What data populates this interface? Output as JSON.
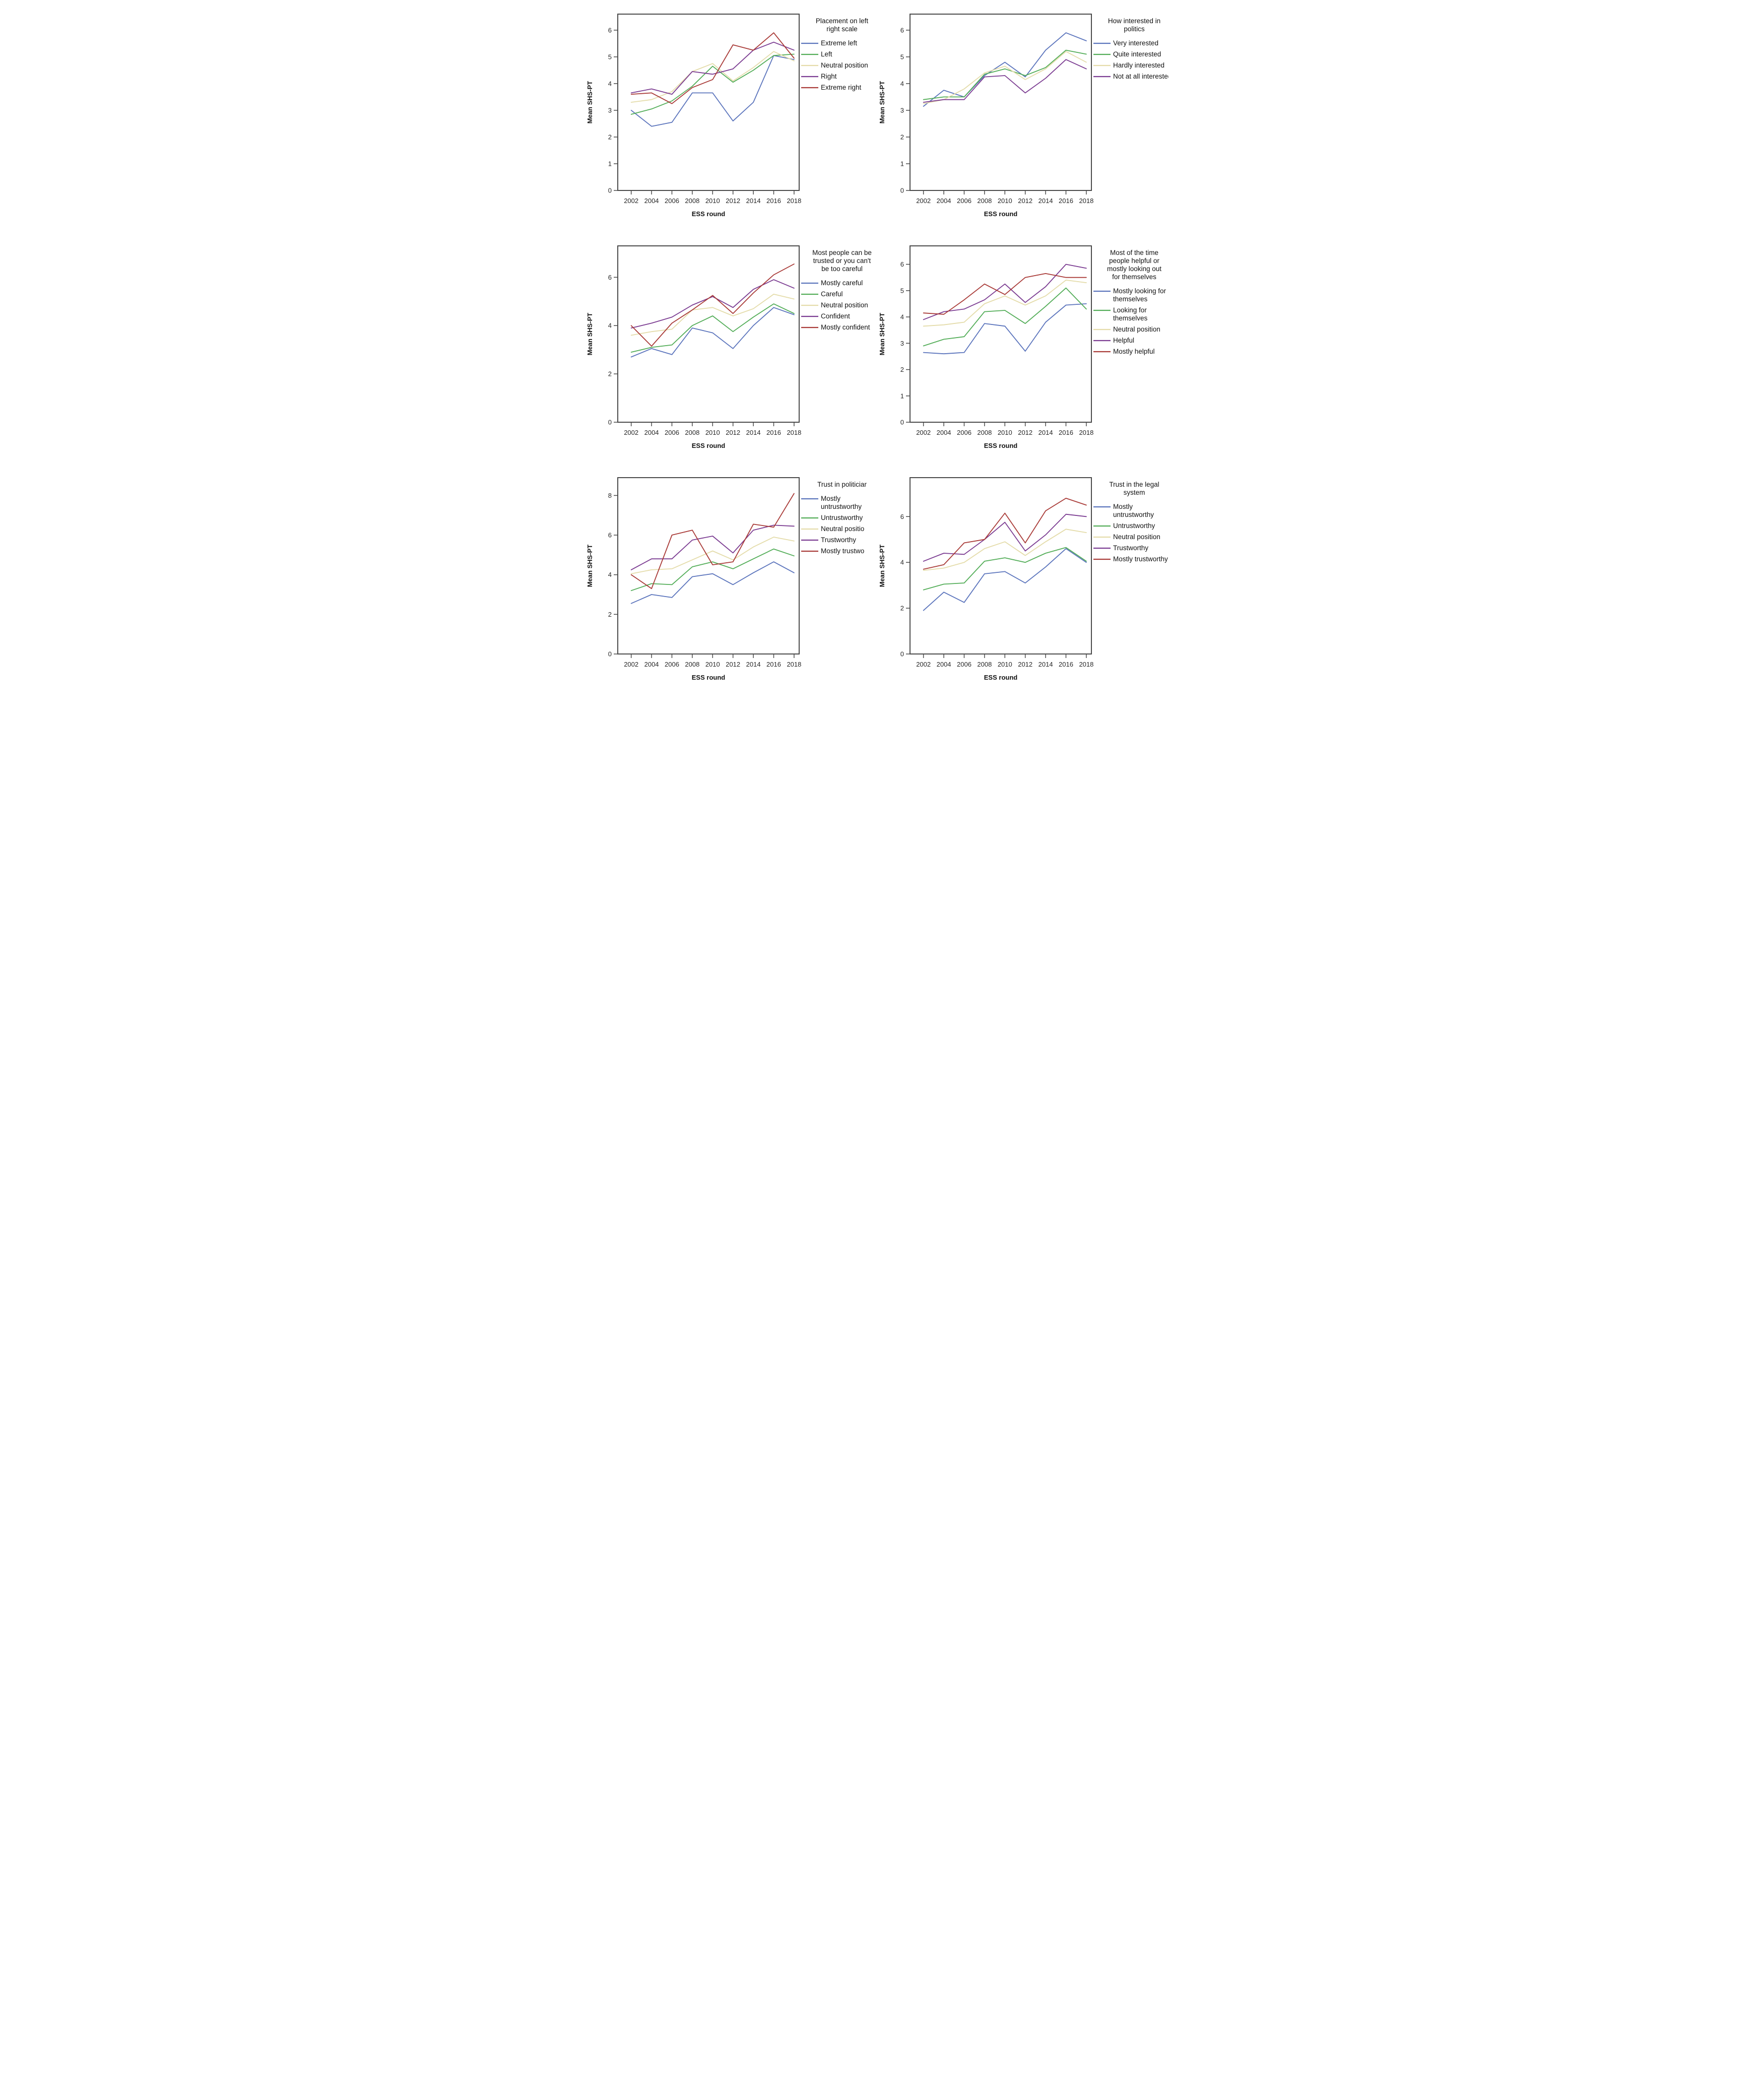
{
  "page": {
    "background": "#ffffff",
    "grid_layout": "2x3"
  },
  "palette": {
    "blue": "#5b74bc",
    "green": "#53ad58",
    "tan": "#e4dcaa",
    "purple": "#7c3d92",
    "red": "#a93b38",
    "axis": "#4a4a4a",
    "text": "#262626"
  },
  "chart_data": [
    {
      "type": "line",
      "title": "Placement on left right scale",
      "title_lines": [
        "Placement on left",
        "right scale"
      ],
      "xlabel": "ESS round",
      "ylabel": "Mean SHS-PT",
      "x": [
        2002,
        2004,
        2006,
        2008,
        2010,
        2012,
        2014,
        2016,
        2018
      ],
      "ylim": [
        0,
        6.6
      ],
      "yticks": [
        0,
        1,
        2,
        3,
        4,
        5,
        6
      ],
      "grid": false,
      "legend_position": "right",
      "series": [
        {
          "name": "Extreme left",
          "name_lines": [
            "Extreme left"
          ],
          "color": "#5b74bc",
          "values": [
            3.0,
            2.4,
            2.55,
            3.65,
            3.65,
            2.6,
            3.3,
            5.05,
            4.9
          ]
        },
        {
          "name": "Left",
          "name_lines": [
            "Left"
          ],
          "color": "#53ad58",
          "values": [
            2.85,
            3.05,
            3.35,
            3.9,
            4.65,
            4.05,
            4.5,
            5.05,
            5.1
          ]
        },
        {
          "name": "Neutral position",
          "name_lines": [
            "Neutral position"
          ],
          "color": "#e4dcaa",
          "values": [
            3.3,
            3.4,
            3.7,
            4.45,
            4.75,
            4.1,
            4.6,
            5.2,
            4.85
          ]
        },
        {
          "name": "Right",
          "name_lines": [
            "Right"
          ],
          "color": "#7c3d92",
          "values": [
            3.65,
            3.8,
            3.6,
            4.45,
            4.35,
            4.55,
            5.25,
            5.55,
            5.25
          ]
        },
        {
          "name": "Extreme right",
          "name_lines": [
            "Extreme right"
          ],
          "color": "#a93b38",
          "values": [
            3.6,
            3.65,
            3.25,
            3.85,
            4.15,
            5.45,
            5.25,
            5.9,
            4.95
          ]
        }
      ]
    },
    {
      "type": "line",
      "title": "How interested in politics",
      "title_lines": [
        "How interested in",
        "politics"
      ],
      "xlabel": "ESS round",
      "ylabel": "Mean SHS-PT",
      "x": [
        2002,
        2004,
        2006,
        2008,
        2010,
        2012,
        2014,
        2016,
        2018
      ],
      "ylim": [
        0,
        6.6
      ],
      "yticks": [
        0,
        1,
        2,
        3,
        4,
        5,
        6
      ],
      "grid": false,
      "legend_position": "right",
      "series": [
        {
          "name": "Very interested",
          "name_lines": [
            "Very interested"
          ],
          "color": "#5b74bc",
          "values": [
            3.15,
            3.75,
            3.5,
            4.3,
            4.8,
            4.25,
            5.25,
            5.9,
            5.6
          ]
        },
        {
          "name": "Quite interested",
          "name_lines": [
            "Quite interested"
          ],
          "color": "#53ad58",
          "values": [
            3.4,
            3.5,
            3.5,
            4.35,
            4.55,
            4.3,
            4.6,
            5.25,
            5.1
          ]
        },
        {
          "name": "Hardly interested",
          "name_lines": [
            "Hardly interested"
          ],
          "color": "#e4dcaa",
          "values": [
            3.25,
            3.4,
            3.8,
            4.4,
            4.65,
            4.15,
            4.55,
            5.2,
            4.8
          ]
        },
        {
          "name": "Not at all interested",
          "name_lines": [
            "Not at all interested"
          ],
          "color": "#7c3d92",
          "values": [
            3.3,
            3.4,
            3.4,
            4.25,
            4.3,
            3.65,
            4.2,
            4.9,
            4.55
          ]
        }
      ]
    },
    {
      "type": "line",
      "title": "Most people can be trusted or you can't be too careful",
      "title_lines": [
        "Most people can be",
        "trusted or you can't",
        "be too careful"
      ],
      "xlabel": "ESS round",
      "ylabel": "Mean SHS-PT",
      "x": [
        2002,
        2004,
        2006,
        2008,
        2010,
        2012,
        2014,
        2016,
        2018
      ],
      "ylim": [
        0,
        7.3
      ],
      "yticks": [
        0,
        2,
        4,
        6
      ],
      "grid": false,
      "legend_position": "right",
      "series": [
        {
          "name": "Mostly careful",
          "name_lines": [
            "Mostly careful"
          ],
          "color": "#5b74bc",
          "values": [
            2.7,
            3.05,
            2.8,
            3.9,
            3.7,
            3.05,
            4.0,
            4.75,
            4.45
          ]
        },
        {
          "name": "Careful",
          "name_lines": [
            "Careful"
          ],
          "color": "#53ad58",
          "values": [
            2.9,
            3.1,
            3.2,
            4.0,
            4.4,
            3.75,
            4.35,
            4.9,
            4.5
          ]
        },
        {
          "name": "Neutral position",
          "name_lines": [
            "Neutral position"
          ],
          "color": "#e4dcaa",
          "values": [
            3.6,
            3.75,
            3.85,
            4.65,
            4.75,
            4.4,
            4.7,
            5.3,
            5.1
          ]
        },
        {
          "name": "Confident",
          "name_lines": [
            "Confident"
          ],
          "color": "#7c3d92",
          "values": [
            3.9,
            4.1,
            4.35,
            4.85,
            5.2,
            4.75,
            5.5,
            5.9,
            5.55
          ]
        },
        {
          "name": "Mostly confident",
          "name_lines": [
            "Mostly confident"
          ],
          "color": "#a93b38",
          "values": [
            4.0,
            3.15,
            4.1,
            4.65,
            5.25,
            4.5,
            5.35,
            6.1,
            6.55
          ]
        }
      ]
    },
    {
      "type": "line",
      "title": "Most of the time people helpful or mostly looking out for themselves",
      "title_lines": [
        "Most of the time",
        "people helpful or",
        "mostly looking out",
        "for themselves"
      ],
      "xlabel": "ESS round",
      "ylabel": "Mean SHS-PT",
      "x": [
        2002,
        2004,
        2006,
        2008,
        2010,
        2012,
        2014,
        2016,
        2018
      ],
      "ylim": [
        0,
        6.7
      ],
      "yticks": [
        0,
        1,
        2,
        3,
        4,
        5,
        6
      ],
      "grid": false,
      "legend_position": "right",
      "series": [
        {
          "name": "Mostly looking for themselves",
          "name_lines": [
            "Mostly looking for",
            "themselves"
          ],
          "color": "#5b74bc",
          "values": [
            2.65,
            2.6,
            2.65,
            3.75,
            3.65,
            2.7,
            3.8,
            4.45,
            4.5
          ]
        },
        {
          "name": "Looking for themselves",
          "name_lines": [
            "Looking for",
            "themselves"
          ],
          "color": "#53ad58",
          "values": [
            2.9,
            3.15,
            3.25,
            4.2,
            4.25,
            3.75,
            4.4,
            5.1,
            4.3
          ]
        },
        {
          "name": "Neutral position",
          "name_lines": [
            "Neutral position"
          ],
          "color": "#e4dcaa",
          "values": [
            3.65,
            3.7,
            3.8,
            4.5,
            4.8,
            4.45,
            4.8,
            5.4,
            5.3
          ]
        },
        {
          "name": "Helpful",
          "name_lines": [
            "Helpful"
          ],
          "color": "#7c3d92",
          "values": [
            3.9,
            4.2,
            4.3,
            4.65,
            5.25,
            4.55,
            5.15,
            6.0,
            5.85
          ]
        },
        {
          "name": "Mostly helpful",
          "name_lines": [
            "Mostly helpful"
          ],
          "color": "#a93b38",
          "values": [
            4.15,
            4.1,
            4.65,
            5.25,
            4.85,
            5.5,
            5.65,
            5.5,
            5.5
          ]
        }
      ]
    },
    {
      "type": "line",
      "title": "Trust in politiciar",
      "title_lines": [
        "Trust in politiciar"
      ],
      "xlabel": "ESS round",
      "ylabel": "Mean SHS-PT",
      "x": [
        2002,
        2004,
        2006,
        2008,
        2010,
        2012,
        2014,
        2016,
        2018
      ],
      "ylim": [
        0,
        8.9
      ],
      "yticks": [
        0,
        2,
        4,
        6,
        8
      ],
      "grid": false,
      "legend_position": "right",
      "series": [
        {
          "name": "Mostly untrustworthy",
          "name_lines": [
            "Mostly",
            "untrustworthy"
          ],
          "color": "#5b74bc",
          "values": [
            2.55,
            3.0,
            2.85,
            3.9,
            4.05,
            3.5,
            4.1,
            4.65,
            4.1
          ]
        },
        {
          "name": "Untrustworthy",
          "name_lines": [
            "Untrustworthy"
          ],
          "color": "#53ad58",
          "values": [
            3.2,
            3.55,
            3.5,
            4.4,
            4.65,
            4.3,
            4.8,
            5.3,
            4.95
          ]
        },
        {
          "name": "Neutral positio",
          "name_lines": [
            "Neutral positio"
          ],
          "color": "#e4dcaa",
          "values": [
            4.05,
            4.25,
            4.3,
            4.75,
            5.2,
            4.75,
            5.4,
            5.9,
            5.7
          ]
        },
        {
          "name": "Trustworthy",
          "name_lines": [
            "Trustworthy"
          ],
          "color": "#7c3d92",
          "values": [
            4.25,
            4.8,
            4.8,
            5.75,
            5.95,
            5.1,
            6.25,
            6.5,
            6.45
          ]
        },
        {
          "name": "Mostly trustwo",
          "name_lines": [
            "Mostly trustwo"
          ],
          "color": "#a93b38",
          "values": [
            4.0,
            3.3,
            6.0,
            6.25,
            4.5,
            4.65,
            6.55,
            6.4,
            8.1
          ]
        }
      ]
    },
    {
      "type": "line",
      "title": "Trust in the legal system",
      "title_lines": [
        "Trust in the legal",
        "system"
      ],
      "xlabel": "ESS round",
      "ylabel": "Mean SHS-PT",
      "x": [
        2002,
        2004,
        2006,
        2008,
        2010,
        2012,
        2014,
        2016,
        2018
      ],
      "ylim": [
        0,
        7.7
      ],
      "yticks": [
        0,
        2,
        4,
        6
      ],
      "grid": false,
      "legend_position": "right",
      "series": [
        {
          "name": "Mostly untrustworthy",
          "name_lines": [
            "Mostly",
            "untrustworthy"
          ],
          "color": "#5b74bc",
          "values": [
            1.9,
            2.7,
            2.25,
            3.5,
            3.6,
            3.1,
            3.8,
            4.6,
            4.0
          ]
        },
        {
          "name": "Untrustworthy",
          "name_lines": [
            "Untrustworthy"
          ],
          "color": "#53ad58",
          "values": [
            2.8,
            3.05,
            3.1,
            4.05,
            4.2,
            4.0,
            4.4,
            4.65,
            4.05
          ]
        },
        {
          "name": "Neutral position",
          "name_lines": [
            "Neutral position"
          ],
          "color": "#e4dcaa",
          "values": [
            3.65,
            3.75,
            4.0,
            4.6,
            4.9,
            4.3,
            4.9,
            5.45,
            5.3
          ]
        },
        {
          "name": "Trustworthy",
          "name_lines": [
            "Trustworthy"
          ],
          "color": "#7c3d92",
          "values": [
            4.05,
            4.4,
            4.35,
            5.0,
            5.75,
            4.5,
            5.2,
            6.1,
            6.0
          ]
        },
        {
          "name": "Mostly trustworthy",
          "name_lines": [
            "Mostly trustworthy"
          ],
          "color": "#a93b38",
          "values": [
            3.7,
            3.9,
            4.85,
            5.0,
            6.15,
            4.85,
            6.25,
            6.8,
            6.5
          ]
        }
      ]
    }
  ]
}
